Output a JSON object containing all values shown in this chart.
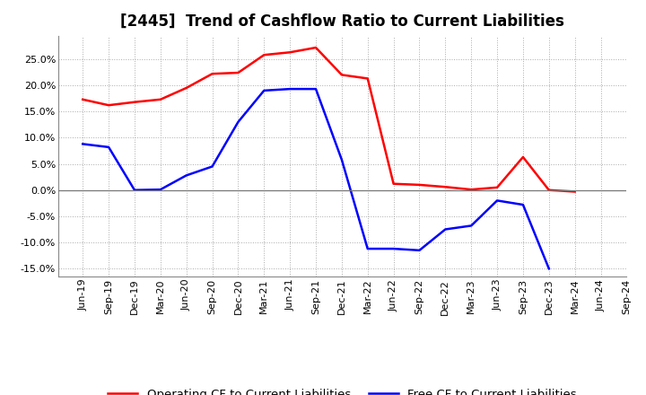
{
  "title": "[2445]  Trend of Cashflow Ratio to Current Liabilities",
  "x_labels": [
    "Jun-19",
    "Sep-19",
    "Dec-19",
    "Mar-20",
    "Jun-20",
    "Sep-20",
    "Dec-20",
    "Mar-21",
    "Jun-21",
    "Sep-21",
    "Dec-21",
    "Mar-22",
    "Jun-22",
    "Sep-22",
    "Dec-22",
    "Mar-23",
    "Jun-23",
    "Sep-23",
    "Dec-23",
    "Mar-24",
    "Jun-24",
    "Sep-24"
  ],
  "operating_cf": [
    0.173,
    0.162,
    0.168,
    0.173,
    0.195,
    0.222,
    0.224,
    0.258,
    0.263,
    0.272,
    0.22,
    0.213,
    0.012,
    0.01,
    0.006,
    0.001,
    0.005,
    0.063,
    0.0,
    -0.003,
    null,
    null
  ],
  "free_cf": [
    0.088,
    0.082,
    0.0,
    0.001,
    0.028,
    0.045,
    0.13,
    0.19,
    0.193,
    0.193,
    0.058,
    -0.112,
    -0.112,
    -0.115,
    -0.075,
    -0.068,
    -0.02,
    -0.028,
    -0.15,
    null,
    null,
    null
  ],
  "operating_color": "#ff0000",
  "free_color": "#0000ff",
  "ylim": [
    -0.165,
    0.295
  ],
  "yticks": [
    -0.15,
    -0.1,
    -0.05,
    0.0,
    0.05,
    0.1,
    0.15,
    0.2,
    0.25
  ],
  "background_color": "#ffffff",
  "grid_color": "#aaaaaa",
  "title_fontsize": 12,
  "legend_fontsize": 9.5,
  "tick_fontsize": 8
}
